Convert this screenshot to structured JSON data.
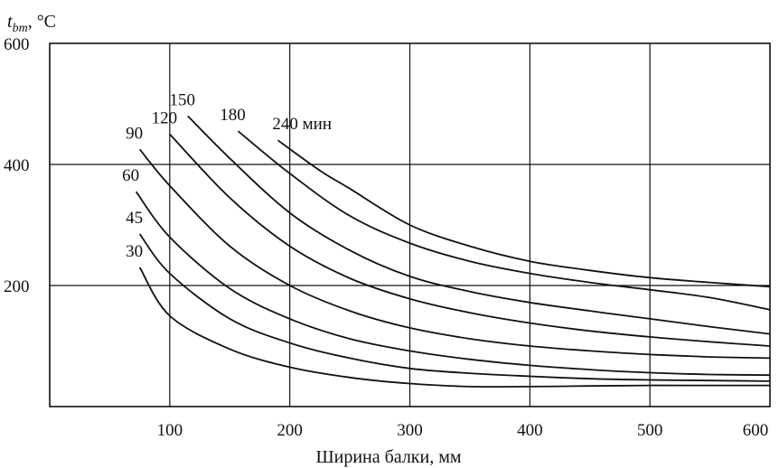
{
  "chart_data": {
    "type": "line",
    "ylabel_main": "t",
    "ylabel_sub": "bm",
    "ylabel_unit": ", °C",
    "xlabel": "Ширина балки, мм",
    "xlim": [
      0,
      600
    ],
    "ylim": [
      0,
      600
    ],
    "x_ticks": [
      100,
      200,
      300,
      400,
      500,
      600
    ],
    "y_ticks": [
      200,
      400,
      600
    ],
    "grid": true,
    "series": [
      {
        "name": "30",
        "x": [
          75,
          100,
          150,
          200,
          250,
          300,
          350,
          400,
          450,
          500,
          550,
          600
        ],
        "y": [
          230,
          150,
          95,
          65,
          48,
          38,
          33,
          33,
          34,
          35,
          35,
          35
        ]
      },
      {
        "name": "45",
        "x": [
          75,
          100,
          150,
          200,
          250,
          300,
          350,
          400,
          450,
          500,
          550,
          600
        ],
        "y": [
          285,
          220,
          145,
          105,
          80,
          63,
          55,
          50,
          46,
          44,
          43,
          42
        ]
      },
      {
        "name": "60",
        "x": [
          72,
          100,
          150,
          200,
          250,
          300,
          350,
          400,
          450,
          500,
          550,
          600
        ],
        "y": [
          355,
          280,
          195,
          145,
          112,
          92,
          78,
          68,
          61,
          56,
          53,
          52
        ]
      },
      {
        "name": "90",
        "x": [
          75,
          100,
          150,
          200,
          250,
          300,
          350,
          400,
          450,
          500,
          550,
          600
        ],
        "y": [
          425,
          365,
          265,
          200,
          158,
          130,
          112,
          100,
          92,
          86,
          82,
          80
        ]
      },
      {
        "name": "120",
        "x": [
          100,
          150,
          200,
          250,
          300,
          350,
          400,
          450,
          500,
          550,
          600
        ],
        "y": [
          450,
          345,
          265,
          212,
          178,
          155,
          138,
          125,
          115,
          107,
          100
        ]
      },
      {
        "name": "150",
        "x": [
          115,
          150,
          200,
          250,
          300,
          350,
          400,
          450,
          500,
          550,
          600
        ],
        "y": [
          480,
          410,
          320,
          258,
          215,
          190,
          172,
          158,
          145,
          132,
          120
        ]
      },
      {
        "name": "180",
        "x": [
          157,
          200,
          250,
          300,
          350,
          400,
          450,
          500,
          550,
          600
        ],
        "y": [
          455,
          385,
          315,
          270,
          240,
          220,
          205,
          193,
          180,
          160
        ]
      },
      {
        "name": "240 мин",
        "x": [
          190,
          225,
          250,
          300,
          350,
          400,
          450,
          500,
          550,
          600
        ],
        "y": [
          440,
          390,
          360,
          300,
          265,
          240,
          225,
          213,
          205,
          198
        ]
      }
    ]
  }
}
